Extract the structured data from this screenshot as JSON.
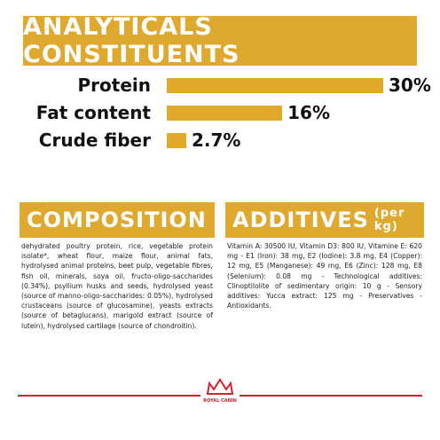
{
  "chart_data": {
    "type": "bar",
    "orientation": "horizontal",
    "title": "ANALYTICALS CONSTITUENTS",
    "categories": [
      "Protein",
      "Fat content",
      "Crude fiber"
    ],
    "values": [
      30,
      16,
      2.7
    ],
    "value_labels": [
      "30%",
      "16%",
      "2.7%"
    ],
    "color": "#e0a92e"
  },
  "composition": {
    "title": "COMPOSITION",
    "text": "dehydrated poultry protein, rice, vegetable protein isolate*, wheat flour, maize flour, animal fats, hydrolysed animal proteins, beet pulp, vegetable fibres, fish oil, minerals, soya oil, fructo-oligo-saccharides (0.34%), psyllium husks and seeds, hydrolysed yeast (source of manno-oligo-saccharides: 0.05%), hydrolysed crustaceans (source of glucosamine), yeasts extracts (source of betaglucans), marigold extract (source of lutein), hydrolysed cartilage (source of chondroitin)."
  },
  "additives": {
    "title": "ADDITIVES",
    "subtitle": "(per kg)",
    "text": "Vitamin A: 30500 IU, Vitamin D3: 800 IU, Vitamine E: 620 mg - E1 (Iron): 38 mg, E2 (Iodine): 3.8 mg, E4 (Copper): 12 mg, E5 (Manganese): 49 mg, E6 (Zinc): 128 mg, E8 (Selenium): 0.08 mg - Technological additives: Clinoptilolite of sedimentary origin: 10 g - Sensory additives: Yucca extract: 125 mg - Preservatives - Antioxidants."
  },
  "footer": {
    "brand": "ROYAL CANIN"
  }
}
